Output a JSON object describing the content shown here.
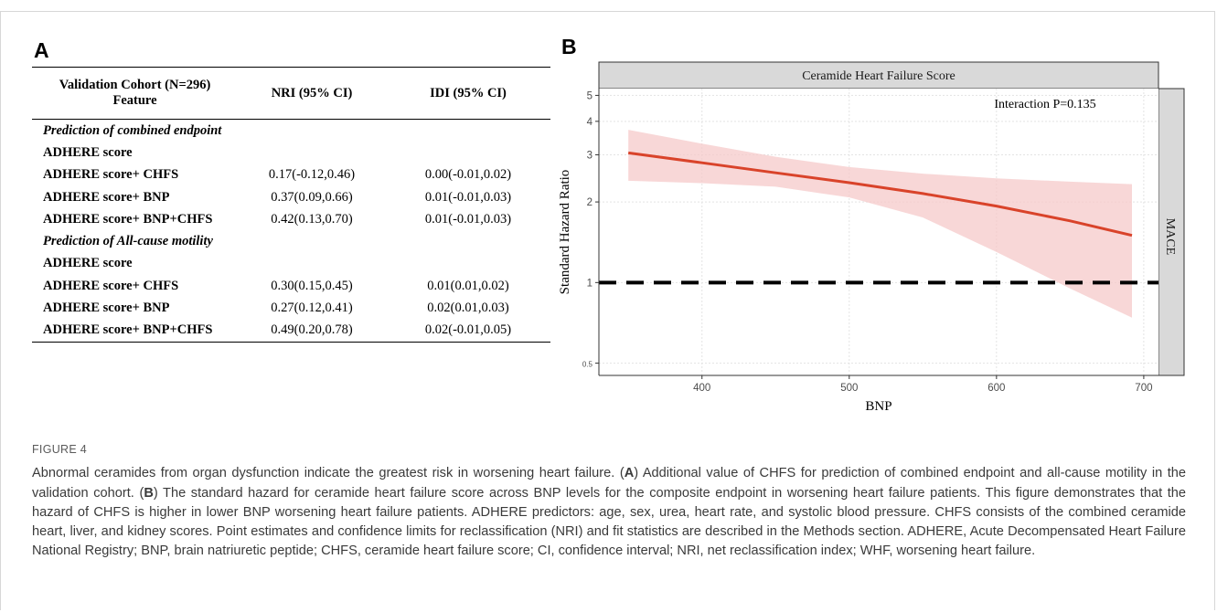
{
  "panelA": {
    "letter": "A",
    "header": {
      "feature": "Validation Cohort (N=296)\nFeature",
      "nri": "NRI (95% CI)",
      "idi": "IDI (95% CI)"
    },
    "rows": [
      {
        "type": "section",
        "label": "Prediction of combined endpoint"
      },
      {
        "type": "row",
        "feature": "ADHERE score",
        "nri": "",
        "idi": ""
      },
      {
        "type": "row",
        "feature": "ADHERE score+ CHFS",
        "nri": "0.17(-0.12,0.46)",
        "idi": "0.00(-0.01,0.02)"
      },
      {
        "type": "row",
        "feature": "ADHERE score+ BNP",
        "nri": "0.37(0.09,0.66)",
        "idi": "0.01(-0.01,0.03)"
      },
      {
        "type": "row",
        "feature": "ADHERE score+ BNP+CHFS",
        "nri": "0.42(0.13,0.70)",
        "idi": "0.01(-0.01,0.03)"
      },
      {
        "type": "section",
        "label": "Prediction of All-cause motility"
      },
      {
        "type": "row",
        "feature": "ADHERE score",
        "nri": "",
        "idi": ""
      },
      {
        "type": "row",
        "feature": "ADHERE score+ CHFS",
        "nri": "0.30(0.15,0.45)",
        "idi": "0.01(0.01,0.02)"
      },
      {
        "type": "row",
        "feature": "ADHERE score+ BNP",
        "nri": "0.27(0.12,0.41)",
        "idi": "0.02(0.01,0.03)"
      },
      {
        "type": "row",
        "feature": "ADHERE score+ BNP+CHFS",
        "nri": "0.49(0.20,0.78)",
        "idi": "0.02(-0.01,0.05)"
      }
    ]
  },
  "panelB": {
    "letter": "B"
  },
  "chart_data": {
    "type": "line",
    "title": "Ceramide Heart Failure Score",
    "facet_right": "MACE",
    "annotation": "Interaction P=0.135",
    "xlabel": "BNP",
    "ylabel": "Standard Hazard Ratio",
    "x_ticks": [
      400,
      500,
      600,
      700
    ],
    "y_ticks": [
      {
        "value": 0.5,
        "label": "0.5"
      },
      {
        "value": 1,
        "label": "1"
      },
      {
        "value": 2,
        "label": "2"
      },
      {
        "value": 3,
        "label": "3"
      },
      {
        "value": 4,
        "label": "4"
      },
      {
        "value": 5,
        "label": "5"
      }
    ],
    "xlim": [
      330,
      710
    ],
    "ylim": [
      0.45,
      5.3
    ],
    "y_scale": "log",
    "series": [
      {
        "x": [
          350,
          400,
          450,
          500,
          550,
          600,
          650,
          692
        ],
        "y": [
          3.05,
          2.8,
          2.57,
          2.36,
          2.15,
          1.93,
          1.7,
          1.5
        ],
        "lower": [
          2.4,
          2.35,
          2.28,
          2.08,
          1.75,
          1.3,
          0.95,
          0.74
        ],
        "upper": [
          3.72,
          3.3,
          2.95,
          2.7,
          2.55,
          2.45,
          2.38,
          2.33
        ],
        "color": "#d9432a",
        "band_color": "#f6c9c9"
      }
    ],
    "reference_line": {
      "y": 1,
      "style": "dashed",
      "color": "#000000"
    },
    "grid": true
  },
  "caption": {
    "figure_label": "FIGURE 4",
    "text": "Abnormal ceramides from organ dysfunction indicate the greatest risk in worsening heart failure. (A) Additional value of CHFS for prediction of combined endpoint and all-cause motility in the validation cohort. (B) The standard hazard for ceramide heart failure score across BNP levels for the composite endpoint in worsening heart failure patients. This figure demonstrates that the hazard of CHFS is higher in lower BNP worsening heart failure patients. ADHERE predictors: age, sex, urea, heart rate, and systolic blood pressure. CHFS consists of the combined ceramide heart, liver, and kidney scores. Point estimates and confidence limits for reclassification (NRI) and fit statistics are described in the Methods section. ADHERE, Acute Decompensated Heart Failure National Registry; BNP, brain natriuretic peptide; CHFS, ceramide heart failure score; CI, confidence interval; NRI, net reclassification index; WHF, worsening heart failure."
  }
}
